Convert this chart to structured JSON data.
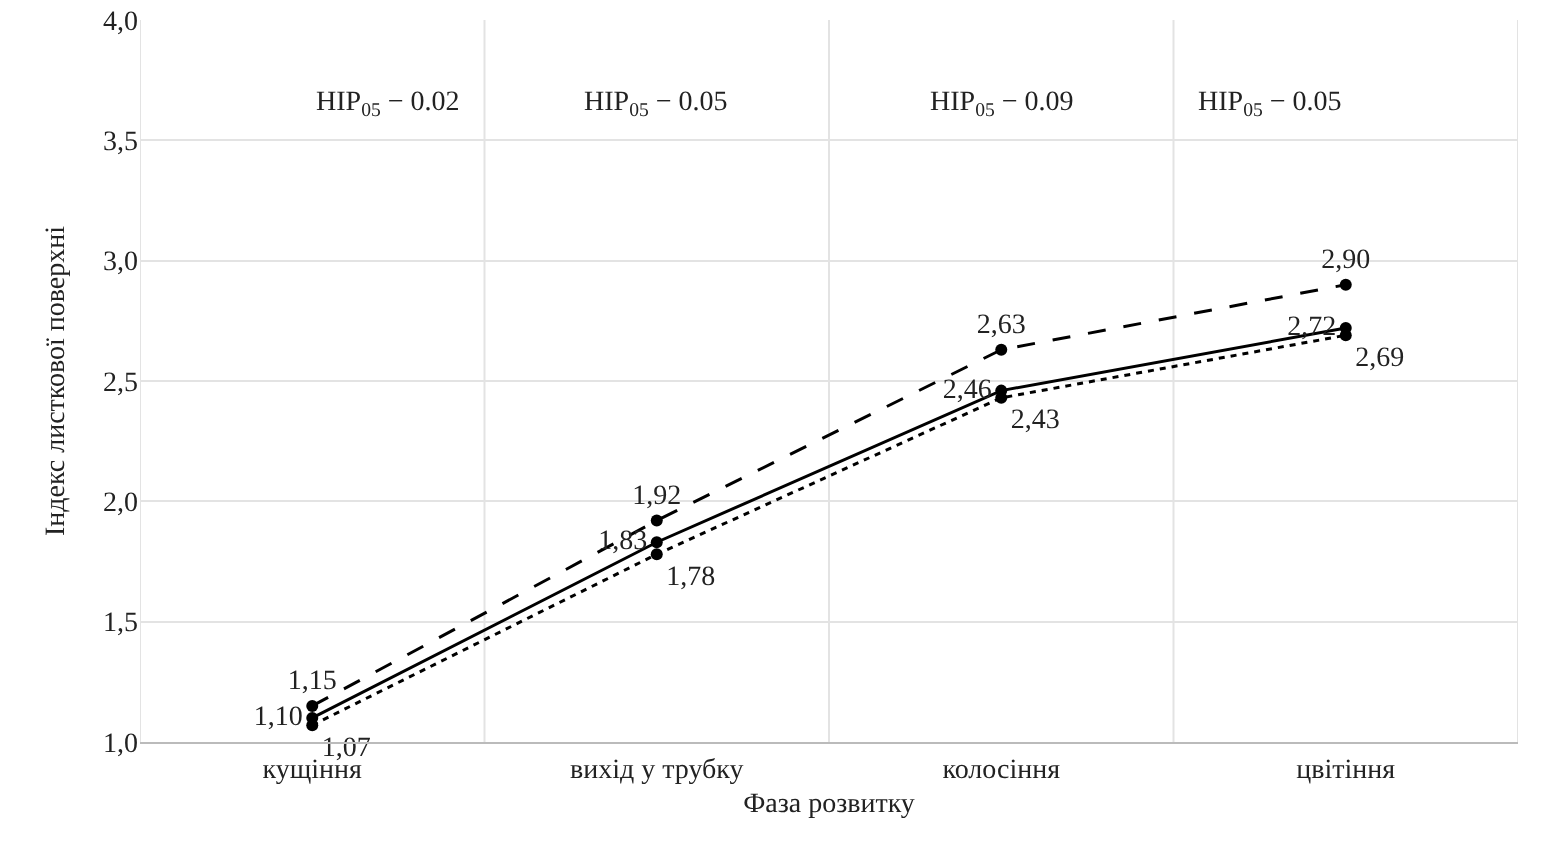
{
  "chart_data": {
    "type": "line",
    "xlabel": "Фаза розвитку",
    "ylabel": "Індекс листкової поверхні",
    "categories": [
      "кущіння",
      "вихід у трубку",
      "колосіння",
      "цвітіння"
    ],
    "series": [
      {
        "color": "#000000",
        "line_style": "dashed",
        "values": [
          1.15,
          1.92,
          2.63,
          2.9
        ],
        "value_labels": [
          "1,15",
          "1,92",
          "2,63",
          "2,90"
        ]
      },
      {
        "color": "#000000",
        "line_style": "solid",
        "values": [
          1.1,
          1.83,
          2.46,
          2.72
        ],
        "value_labels": [
          "1,10",
          "1,83",
          "2,46",
          "2,72"
        ]
      },
      {
        "color": "#000000",
        "line_style": "dotted",
        "values": [
          1.07,
          1.78,
          2.43,
          2.69
        ],
        "value_labels": [
          "1,07",
          "1,78",
          "2,43",
          "2,69"
        ]
      }
    ],
    "ylim": [
      1,
      4
    ],
    "yticks": [
      {
        "value": 1,
        "label": "1,0"
      },
      {
        "value": 1.5,
        "label": "1,5"
      },
      {
        "value": 2,
        "label": "2,0"
      },
      {
        "value": 2.5,
        "label": "2,5"
      },
      {
        "value": 3,
        "label": "3,0"
      },
      {
        "value": 3.5,
        "label": "3,5"
      },
      {
        "value": 4,
        "label": "4,0"
      }
    ],
    "grid": true,
    "marker": "circle",
    "annotations": [
      "HIP$_{05}$ − 0.02",
      "HIP$_{05}$ − 0.05",
      "HIP$_{05}$ − 0.09",
      "HIP$_{05}$ − 0.05"
    ]
  }
}
